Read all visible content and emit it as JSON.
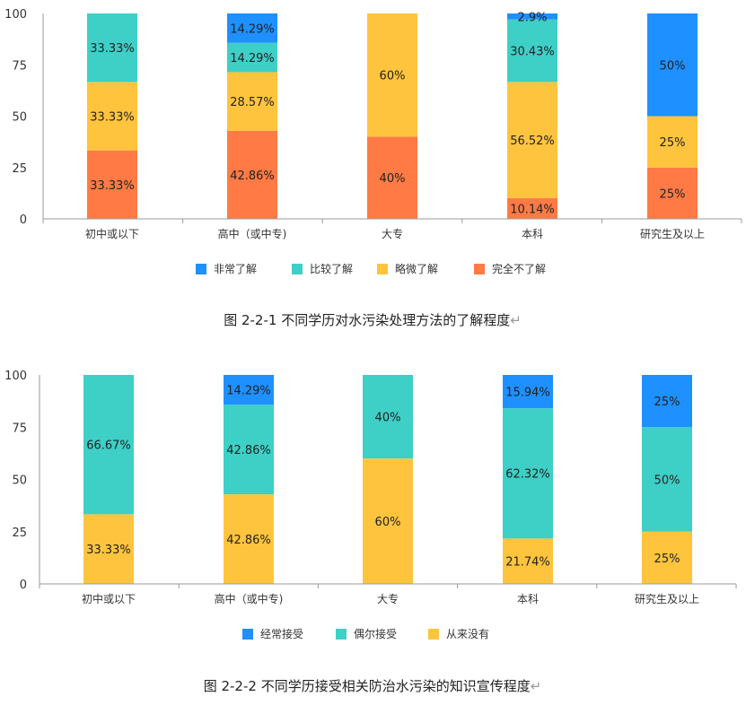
{
  "colors": {
    "very_well": "#1E90FF",
    "somewhat": "#3ECFC6",
    "slightly": "#FFC43D",
    "not_at_all": "#FF7A45",
    "axis": "#9A9A9A",
    "text": "#333333"
  },
  "chart_data": [
    {
      "type": "bar",
      "stacked": true,
      "caption": "图 2-2-1 不同学历对水污染处理方法的了解程度",
      "caption_mark": "↵",
      "categories": [
        "初中或以下",
        "高中（或中专)",
        "大专",
        "本科",
        "研究生及以上"
      ],
      "ylim": [
        0,
        100
      ],
      "yticks": [
        "0",
        "25",
        "50",
        "75",
        "100"
      ],
      "legend_position": "bottom",
      "series": [
        {
          "name": "完全不了解",
          "color_key": "not_at_all",
          "values": [
            33.33,
            42.86,
            40,
            10.14,
            25
          ],
          "labels": [
            "33.33%",
            "42.86%",
            "40%",
            "10.14%",
            "25%"
          ]
        },
        {
          "name": "略微了解",
          "color_key": "slightly",
          "values": [
            33.33,
            28.57,
            60,
            56.52,
            25
          ],
          "labels": [
            "33.33%",
            "28.57%",
            "60%",
            "56.52%",
            "25%"
          ]
        },
        {
          "name": "比较了解",
          "color_key": "somewhat",
          "values": [
            33.33,
            14.29,
            0,
            30.43,
            0
          ],
          "labels": [
            "33.33%",
            "14.29%",
            "",
            "30.43%",
            ""
          ]
        },
        {
          "name": "非常了解",
          "color_key": "very_well",
          "values": [
            0,
            14.29,
            0,
            2.9,
            50
          ],
          "labels": [
            "",
            "14.29%",
            "",
            "2.9%",
            "50%"
          ]
        }
      ],
      "legend_order": [
        3,
        2,
        1,
        0
      ]
    },
    {
      "type": "bar",
      "stacked": true,
      "caption": "图 2-2-2 不同学历接受相关防治水污染的知识宣传程度",
      "caption_mark": "↵",
      "categories": [
        "初中或以下",
        "高中（或中专)",
        "大专",
        "本科",
        "研究生及以上"
      ],
      "ylim": [
        0,
        100
      ],
      "yticks": [
        "0",
        "25",
        "50",
        "75",
        "100"
      ],
      "legend_position": "bottom",
      "series": [
        {
          "name": "从来没有",
          "color_key": "slightly",
          "values": [
            33.33,
            42.86,
            60,
            21.74,
            25
          ],
          "labels": [
            "33.33%",
            "42.86%",
            "60%",
            "21.74%",
            "25%"
          ]
        },
        {
          "name": "偶尔接受",
          "color_key": "somewhat",
          "values": [
            66.67,
            42.86,
            40,
            62.32,
            50
          ],
          "labels": [
            "66.67%",
            "42.86%",
            "40%",
            "62.32%",
            "50%"
          ]
        },
        {
          "name": "经常接受",
          "color_key": "very_well",
          "values": [
            0,
            14.29,
            0,
            15.94,
            25
          ],
          "labels": [
            "",
            "14.29%",
            "",
            "15.94%",
            "25%"
          ]
        }
      ],
      "legend_order": [
        2,
        1,
        0
      ]
    }
  ]
}
